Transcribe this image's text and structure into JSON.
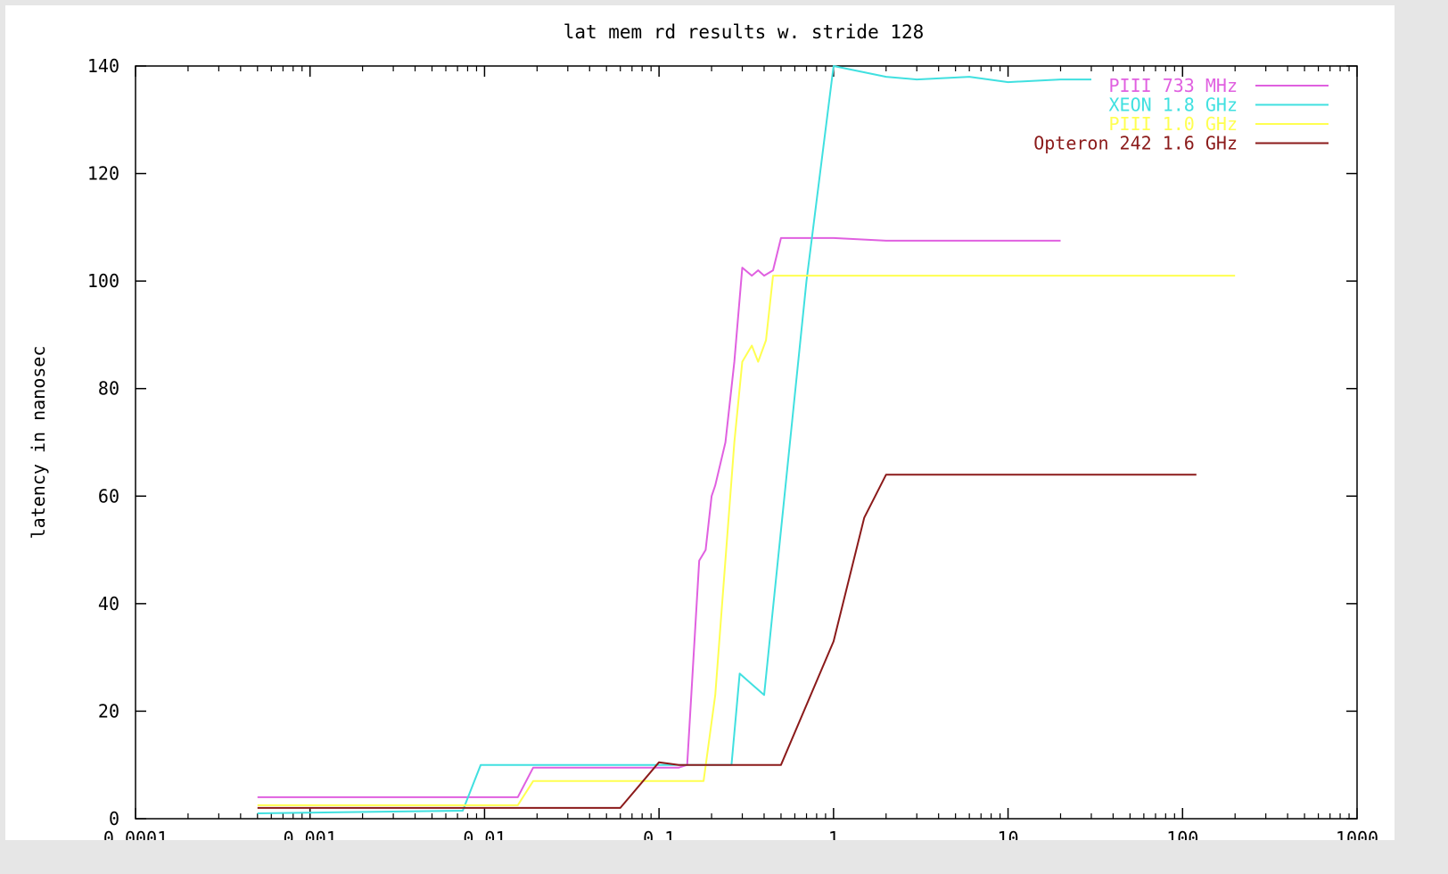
{
  "chart_data": {
    "type": "line",
    "title": "lat mem rd results w. stride 128",
    "xlabel": "",
    "ylabel": "latency in nanosec",
    "xscale": "log",
    "xlim": [
      0.0001,
      1000
    ],
    "ylim": [
      0,
      140
    ],
    "xticks": [
      "0.0001",
      "0.001",
      "0.01",
      "0.1",
      "1",
      "10",
      "100",
      "1000"
    ],
    "yticks": [
      "0",
      "20",
      "40",
      "60",
      "80",
      "100",
      "120",
      "140"
    ],
    "grid": false,
    "legend_position": "top-right",
    "series": [
      {
        "name": "PIII 733 MHz",
        "color": "#e060e0",
        "points": [
          [
            0.0005,
            4
          ],
          [
            0.0155,
            4
          ],
          [
            0.019,
            9.5
          ],
          [
            0.1,
            9.5
          ],
          [
            0.13,
            9.5
          ],
          [
            0.145,
            10
          ],
          [
            0.17,
            48
          ],
          [
            0.185,
            50
          ],
          [
            0.2,
            60
          ],
          [
            0.21,
            62
          ],
          [
            0.24,
            70
          ],
          [
            0.27,
            85
          ],
          [
            0.3,
            102.5
          ],
          [
            0.34,
            101
          ],
          [
            0.37,
            102
          ],
          [
            0.4,
            101
          ],
          [
            0.45,
            102
          ],
          [
            0.5,
            108
          ],
          [
            1,
            108
          ],
          [
            2,
            107.5
          ],
          [
            20,
            107.5
          ]
        ]
      },
      {
        "name": "XEON 1.8 GHz",
        "color": "#40e0e0",
        "points": [
          [
            0.0005,
            1
          ],
          [
            0.0075,
            1.5
          ],
          [
            0.0095,
            10
          ],
          [
            0.1,
            10
          ],
          [
            0.26,
            10
          ],
          [
            0.29,
            27
          ],
          [
            0.34,
            25
          ],
          [
            0.4,
            23
          ],
          [
            0.7,
            100
          ],
          [
            1,
            140
          ],
          [
            2,
            138
          ],
          [
            3,
            137.5
          ],
          [
            6,
            138
          ],
          [
            10,
            137
          ],
          [
            20,
            137.5
          ],
          [
            30,
            137.5
          ]
        ]
      },
      {
        "name": "PIII 1.0 GHz",
        "color": "#ffff50",
        "points": [
          [
            0.0005,
            2.5
          ],
          [
            0.0155,
            2.5
          ],
          [
            0.019,
            7
          ],
          [
            0.1,
            7
          ],
          [
            0.18,
            7
          ],
          [
            0.21,
            23
          ],
          [
            0.23,
            40
          ],
          [
            0.27,
            70
          ],
          [
            0.3,
            85
          ],
          [
            0.34,
            88
          ],
          [
            0.37,
            85
          ],
          [
            0.41,
            89
          ],
          [
            0.45,
            101
          ],
          [
            1,
            101
          ],
          [
            10,
            101
          ],
          [
            200,
            101
          ]
        ]
      },
      {
        "name": "Opteron 242 1.6 GHz",
        "color": "#8b1a1a",
        "points": [
          [
            0.0005,
            2
          ],
          [
            0.06,
            2
          ],
          [
            0.1,
            10.5
          ],
          [
            0.13,
            10
          ],
          [
            0.5,
            10
          ],
          [
            1,
            33
          ],
          [
            1.5,
            56
          ],
          [
            2,
            64
          ],
          [
            120,
            64
          ]
        ]
      }
    ]
  }
}
